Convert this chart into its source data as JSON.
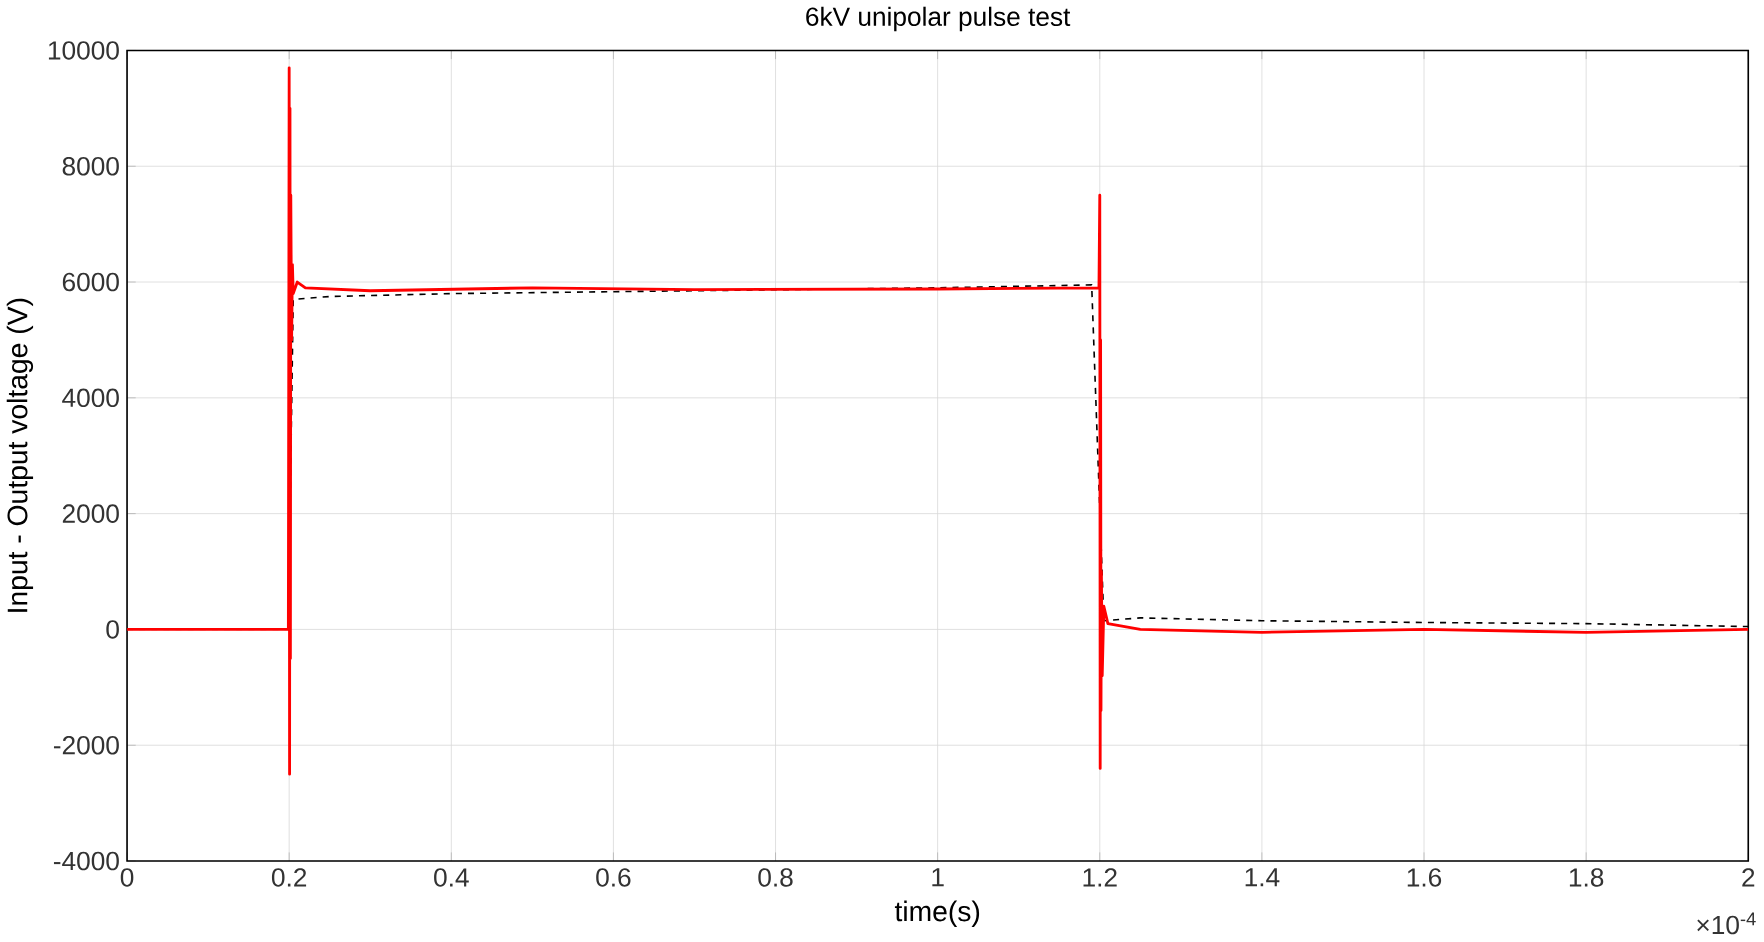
{
  "chart_data": {
    "type": "line",
    "title": "6kV unipolar pulse test",
    "xlabel": "time(s)",
    "ylabel": "Input - Output voltage (V)",
    "annotations": [
      "×10$^{-4}$"
    ],
    "xlim": [
      0,
      2
    ],
    "xticks": [
      0,
      0.2,
      0.4,
      0.6,
      0.8,
      1,
      1.2,
      1.4,
      1.6,
      1.8,
      2
    ],
    "ylim": [
      -4000,
      10000
    ],
    "yticks": [
      -4000,
      -2000,
      0,
      2000,
      4000,
      6000,
      8000,
      10000
    ],
    "grid": true,
    "legend": false,
    "marker": "none",
    "series": [
      {
        "color": "#000000",
        "line_style": "dashed",
        "x": [
          0,
          0.199,
          0.205,
          0.25,
          0.4,
          0.7,
          1.0,
          1.19,
          1.205,
          1.25,
          1.4,
          1.6,
          1.8,
          2.0
        ],
        "values": [
          0,
          0,
          5700,
          5750,
          5800,
          5850,
          5900,
          5950,
          150,
          200,
          150,
          120,
          100,
          50
        ]
      },
      {
        "color": "#ff0000",
        "line_style": "solid",
        "x": [
          0,
          0.199,
          0.2,
          0.2005,
          0.201,
          0.2015,
          0.202,
          0.203,
          0.204,
          0.205,
          0.21,
          0.22,
          0.3,
          0.5,
          0.7,
          1.0,
          1.199,
          1.2,
          1.2005,
          1.201,
          1.2015,
          1.202,
          1.203,
          1.205,
          1.21,
          1.25,
          1.4,
          1.6,
          1.8,
          2.0
        ],
        "values": [
          0,
          0,
          9700,
          -2500,
          9000,
          -500,
          7500,
          5000,
          6300,
          5800,
          6000,
          5900,
          5850,
          5900,
          5870,
          5880,
          5900,
          7500,
          -2400,
          5000,
          -1400,
          1000,
          -800,
          400,
          100,
          0,
          -50,
          0,
          -50,
          0
        ]
      }
    ]
  }
}
